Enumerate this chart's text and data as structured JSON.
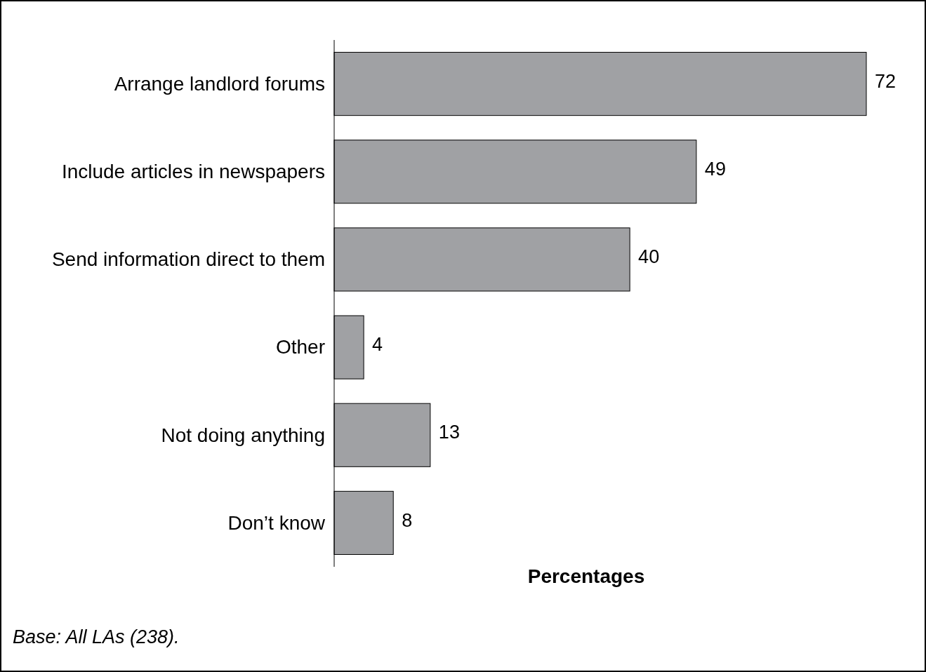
{
  "chart_data": {
    "type": "bar",
    "orientation": "horizontal",
    "categories": [
      "Arrange landlord forums",
      "Include articles in newspapers",
      "Send information direct to them",
      "Other",
      "Not doing anything",
      "Don’t know"
    ],
    "values": [
      72,
      49,
      40,
      4,
      13,
      8
    ],
    "color": "#a0a1a4",
    "data_labels": true,
    "xlabel": "Percentages",
    "annotations": [
      "Base: All LAs (238)."
    ]
  }
}
